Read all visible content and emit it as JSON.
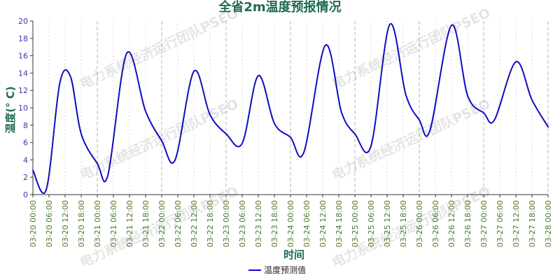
{
  "chart_data": {
    "type": "line",
    "title": "全省2m温度预报情况",
    "xlabel": "时间",
    "ylabel": "温度(° C)",
    "ylim": [
      0,
      20
    ],
    "yticks": [
      0,
      2,
      4,
      6,
      8,
      10,
      12,
      14,
      16,
      18,
      20
    ],
    "grid": true,
    "legend_position": "bottom-center",
    "x_tick_labels": [
      "03-20 00:00",
      "03-20 06:00",
      "03-20 12:00",
      "03-20 18:00",
      "03-21 00:00",
      "03-21 06:00",
      "03-21 12:00",
      "03-21 18:00",
      "03-22 00:00",
      "03-22 06:00",
      "03-22 12:00",
      "03-22 18:00",
      "03-23 00:00",
      "03-23 06:00",
      "03-23 12:00",
      "03-23 18:00",
      "03-24 00:00",
      "03-24 06:00",
      "03-24 12:00",
      "03-24 18:00",
      "03-25 00:00",
      "03-25 06:00",
      "03-25 12:00",
      "03-25 18:00",
      "03-26 00:00",
      "03-26 06:00",
      "03-26 12:00",
      "03-26 18:00",
      "03-27 00:00",
      "03-27 06:00",
      "03-27 12:00",
      "03-27 18:00",
      "03-28 00:00"
    ],
    "series": [
      {
        "name": "温度预测值",
        "color": "#0d0dc0",
        "points": [
          {
            "x": "03-20 00:00",
            "y": 2.8
          },
          {
            "x": "03-20 05:00",
            "y": 0.6
          },
          {
            "x": "03-20 10:00",
            "y": 12.8
          },
          {
            "x": "03-20 14:00",
            "y": 13.6
          },
          {
            "x": "03-20 18:00",
            "y": 7.0
          },
          {
            "x": "03-21 00:00",
            "y": 3.6
          },
          {
            "x": "03-21 04:00",
            "y": 2.3
          },
          {
            "x": "03-21 11:00",
            "y": 16.3
          },
          {
            "x": "03-21 18:00",
            "y": 9.6
          },
          {
            "x": "03-22 00:00",
            "y": 6.2
          },
          {
            "x": "03-22 05:00",
            "y": 4.0
          },
          {
            "x": "03-22 12:00",
            "y": 14.2
          },
          {
            "x": "03-22 18:00",
            "y": 9.2
          },
          {
            "x": "03-23 00:00",
            "y": 7.0
          },
          {
            "x": "03-23 06:00",
            "y": 5.9
          },
          {
            "x": "03-23 12:00",
            "y": 13.7
          },
          {
            "x": "03-23 18:00",
            "y": 8.2
          },
          {
            "x": "03-24 00:00",
            "y": 6.6
          },
          {
            "x": "03-24 05:00",
            "y": 4.9
          },
          {
            "x": "03-24 13:00",
            "y": 17.2
          },
          {
            "x": "03-24 19:00",
            "y": 9.5
          },
          {
            "x": "03-25 00:00",
            "y": 7.0
          },
          {
            "x": "03-25 06:00",
            "y": 5.6
          },
          {
            "x": "03-25 13:00",
            "y": 19.6
          },
          {
            "x": "03-25 19:00",
            "y": 11.5
          },
          {
            "x": "03-26 00:00",
            "y": 8.6
          },
          {
            "x": "03-26 04:00",
            "y": 7.4
          },
          {
            "x": "03-26 12:00",
            "y": 19.5
          },
          {
            "x": "03-26 18:00",
            "y": 11.4
          },
          {
            "x": "03-27 00:00",
            "y": 9.4
          },
          {
            "x": "03-27 04:00",
            "y": 8.6
          },
          {
            "x": "03-27 12:00",
            "y": 15.3
          },
          {
            "x": "03-27 18:00",
            "y": 10.9
          },
          {
            "x": "03-28 00:00",
            "y": 7.8
          }
        ]
      }
    ],
    "watermark": "电力系统经济运行团队PSEO"
  }
}
